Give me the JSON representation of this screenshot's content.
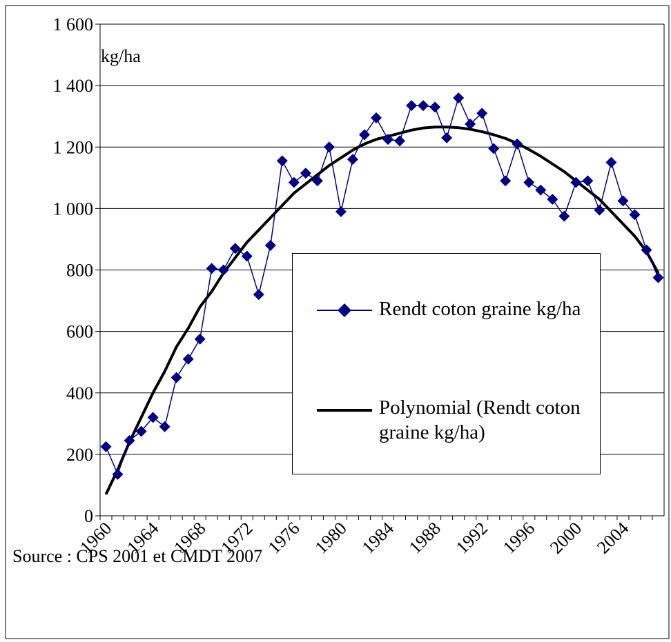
{
  "chart_data": {
    "type": "line",
    "unit_label": "kg/ha",
    "source": "Source : CPS 2001 et CMDT 2007",
    "categories": [
      "1960",
      null,
      null,
      null,
      "1964",
      null,
      null,
      null,
      "1968",
      null,
      null,
      null,
      "1972",
      null,
      null,
      null,
      "1976",
      null,
      null,
      null,
      "1980",
      null,
      null,
      null,
      "1984",
      null,
      null,
      null,
      "1988",
      null,
      null,
      null,
      "1992",
      null,
      null,
      null,
      "1996",
      null,
      null,
      null,
      "2000",
      null,
      null,
      null,
      "2004",
      null,
      null,
      null
    ],
    "series": [
      {
        "name": "Rendt coton graine kg/ha",
        "color": "#000080",
        "marker": "diamond",
        "values": [
          225,
          135,
          245,
          275,
          320,
          290,
          450,
          510,
          575,
          805,
          800,
          870,
          845,
          720,
          880,
          1155,
          1085,
          1115,
          1090,
          1200,
          990,
          1160,
          1240,
          1295,
          1225,
          1220,
          1335,
          1335,
          1330,
          1230,
          1360,
          1275,
          1310,
          1195,
          1090,
          1210,
          1085,
          1060,
          1030,
          975,
          1085,
          1090,
          995,
          1150,
          1025,
          980,
          865,
          775
        ]
      },
      {
        "name": "Polynomial (Rendt coton graine kg/ha)",
        "color": "#000000",
        "values": [
          70,
          150,
          240,
          320,
          400,
          470,
          550,
          610,
          680,
          730,
          790,
          840,
          890,
          930,
          970,
          1010,
          1050,
          1080,
          1110,
          1140,
          1165,
          1190,
          1210,
          1225,
          1235,
          1245,
          1255,
          1262,
          1265,
          1265,
          1263,
          1258,
          1250,
          1240,
          1228,
          1212,
          1192,
          1170,
          1145,
          1120,
          1090,
          1060,
          1030,
          990,
          950,
          910,
          860,
          790
        ]
      }
    ],
    "ylim": [
      0,
      1600
    ],
    "yticks": [
      0,
      200,
      400,
      600,
      800,
      {
        "value": 1000,
        "label": "1 000"
      },
      {
        "value": 1200,
        "label": "1 200"
      },
      {
        "value": 1400,
        "label": "1 400"
      },
      {
        "value": 1600,
        "label": "1 600"
      }
    ],
    "grid": true
  }
}
